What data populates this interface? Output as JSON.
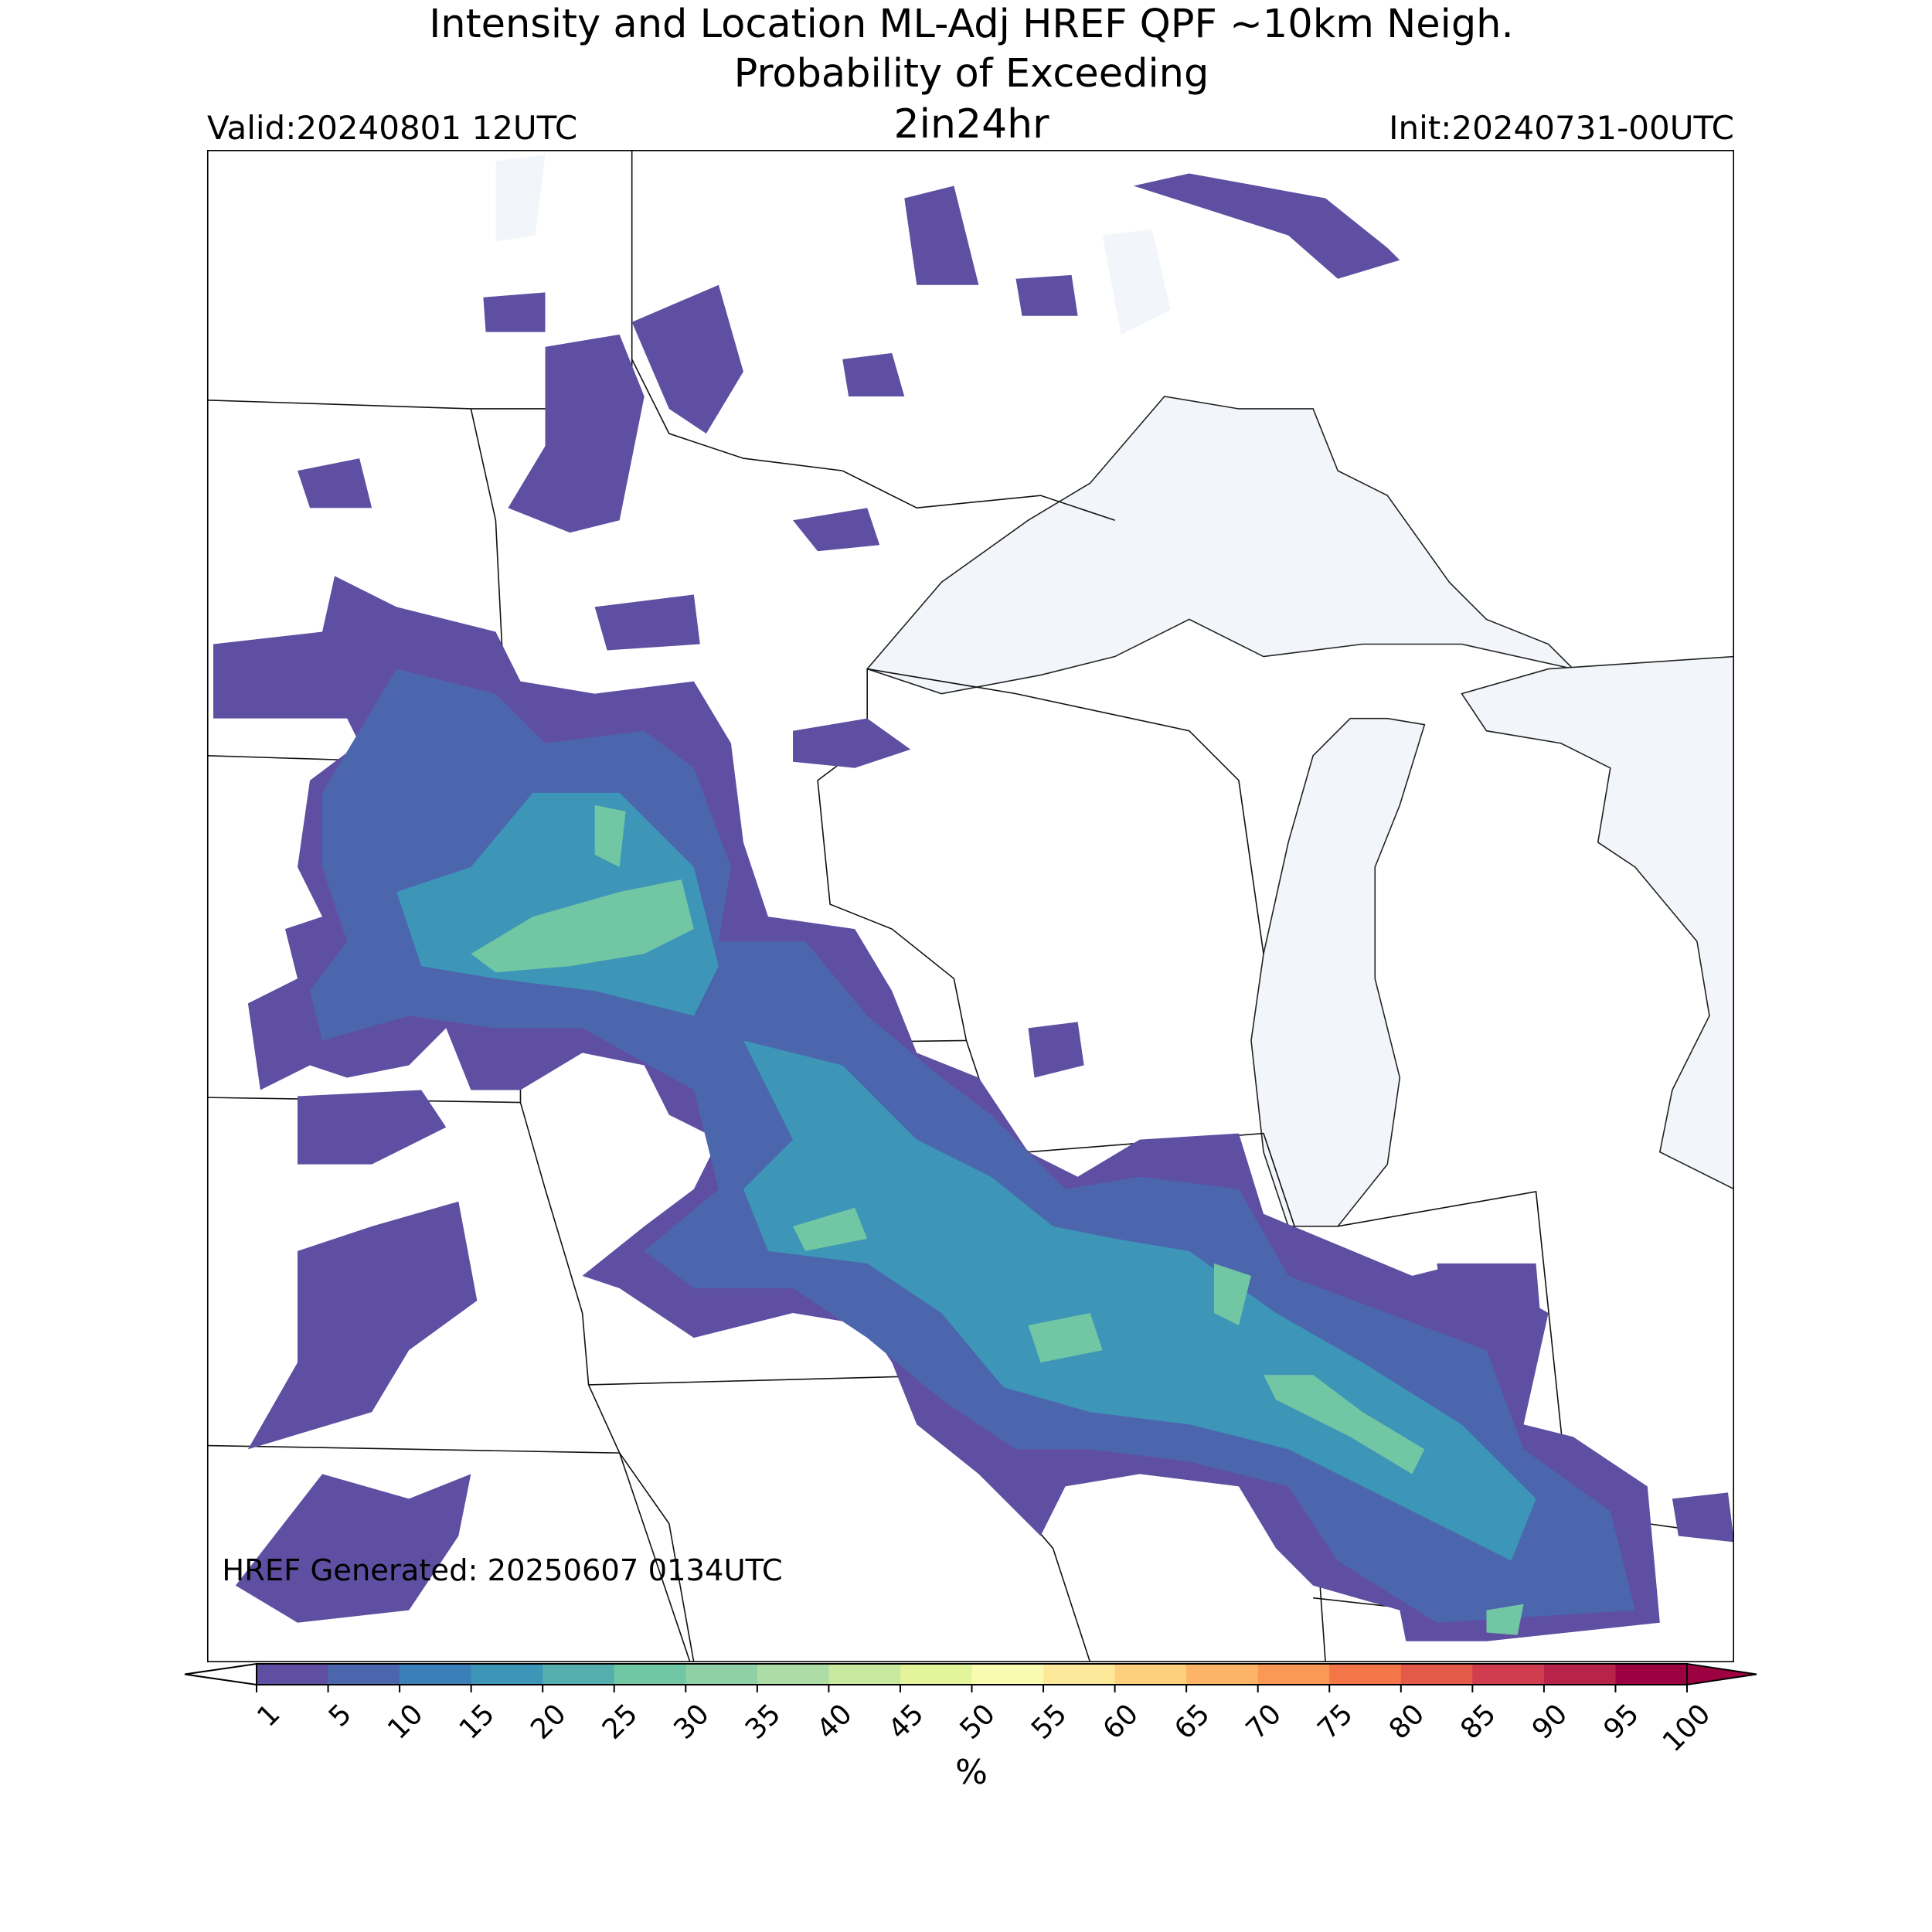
{
  "header": {
    "title": [
      "Intensity and Location ML-Adj HREF QPF ~10km Neigh.",
      "Probability of Exceeding"
    ],
    "threshold": "2in24hr",
    "valid": "Valid:20240801 12UTC",
    "init": "Init:20240731-00UTC"
  },
  "map": {
    "note": "HREF Generated: 20250607 0134UTC"
  },
  "colorbar": {
    "label": "%",
    "ticks": [
      1,
      5,
      10,
      15,
      20,
      25,
      30,
      35,
      40,
      45,
      50,
      55,
      60,
      65,
      70,
      75,
      80,
      85,
      90,
      95,
      100
    ],
    "colors": [
      "#5e4fa2",
      "#4c66ad",
      "#3b7fb9",
      "#3d95b8",
      "#54aead",
      "#71c6a4",
      "#8fd1a4",
      "#addca5",
      "#c9e8a0",
      "#e3f49b",
      "#f8fbb0",
      "#fee99a",
      "#fed07e",
      "#fdb466",
      "#fa9856",
      "#f47548",
      "#e45a49",
      "#cf3d4e",
      "#b82349",
      "#9e0142"
    ],
    "under": "#ffffff",
    "over": "#9e0142"
  }
}
